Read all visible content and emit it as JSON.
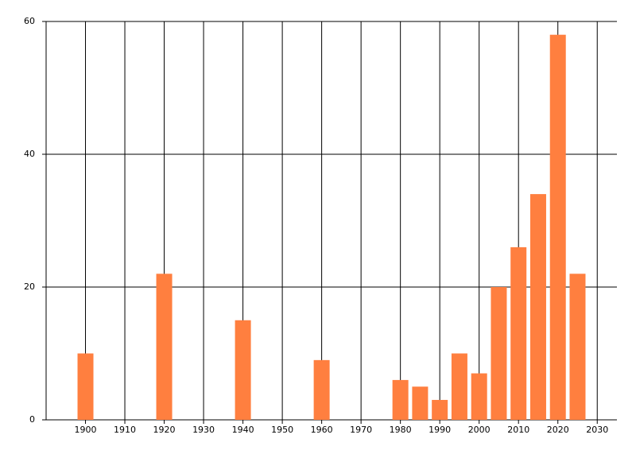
{
  "chart_data": {
    "type": "bar",
    "x": [
      1900,
      1920,
      1940,
      1960,
      1980,
      1985,
      1990,
      1995,
      2000,
      2005,
      2010,
      2015,
      2020,
      2025
    ],
    "values": [
      10,
      22,
      15,
      9,
      6,
      5,
      3,
      10,
      7,
      20,
      26,
      34,
      58,
      22
    ],
    "color": "#ff7f3f",
    "xlim": [
      1890,
      2035
    ],
    "xticks": [
      1900,
      1910,
      1920,
      1930,
      1940,
      1950,
      1960,
      1970,
      1980,
      1990,
      2000,
      2010,
      2020,
      2030
    ],
    "ylim": [
      0,
      60
    ],
    "yticks": [
      0,
      20,
      40,
      60
    ],
    "grid": true
  }
}
